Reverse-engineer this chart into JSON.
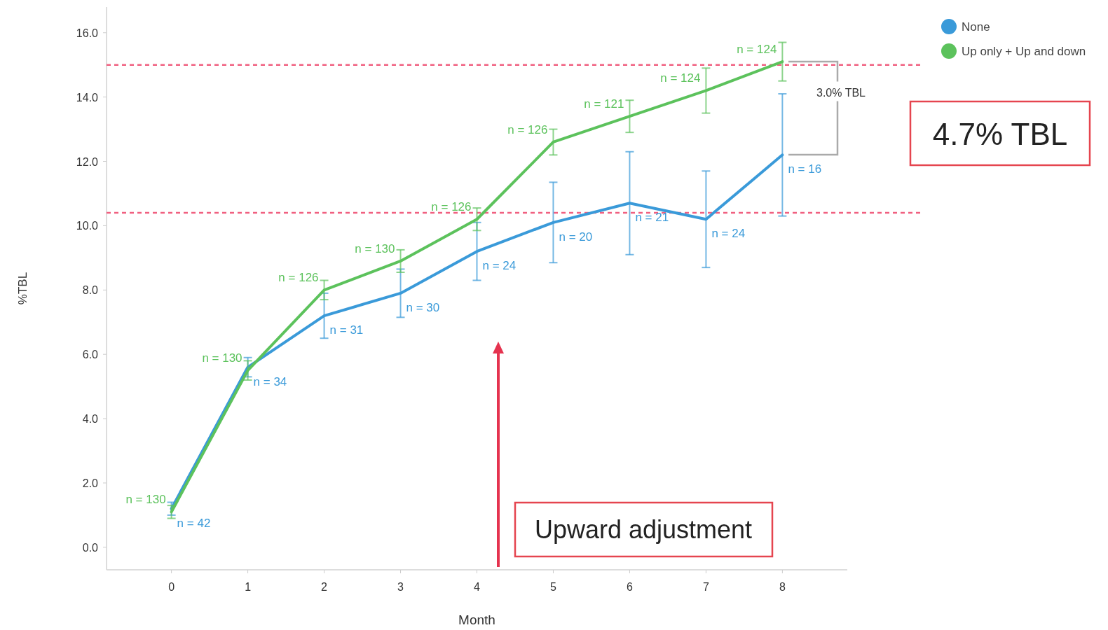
{
  "chart_data": {
    "type": "line",
    "xlabel": "Month",
    "ylabel": "%TBL",
    "x": [
      0,
      1,
      2,
      3,
      4,
      5,
      6,
      7,
      8
    ],
    "series": [
      {
        "name": "None",
        "color": "#3a9ad9",
        "values": [
          1.2,
          5.6,
          7.2,
          7.9,
          9.2,
          10.1,
          10.7,
          10.2,
          12.2
        ],
        "errors": [
          0.2,
          0.3,
          0.7,
          0.75,
          0.9,
          1.25,
          1.6,
          1.5,
          1.9
        ]
      },
      {
        "name": "Up only + Up and down",
        "color": "#5cc25c",
        "values": [
          1.1,
          5.5,
          8.0,
          8.9,
          10.2,
          12.6,
          13.4,
          14.2,
          15.1
        ],
        "errors": [
          0.2,
          0.3,
          0.3,
          0.35,
          0.35,
          0.4,
          0.5,
          0.7,
          0.6
        ]
      }
    ],
    "xlim": [
      -0.85,
      8.85
    ],
    "xticks": [
      0,
      1,
      2,
      3,
      4,
      5,
      6,
      7,
      8
    ],
    "ylim": [
      -0.7,
      16.8
    ],
    "yticks": [
      {
        "value": 0,
        "label": "0.0"
      },
      {
        "value": 2,
        "label": "2.0"
      },
      {
        "value": 4,
        "label": "4.0"
      },
      {
        "value": 6,
        "label": "6.0"
      },
      {
        "value": 8,
        "label": "8.0"
      },
      {
        "value": 10,
        "label": "10.0"
      },
      {
        "value": 12,
        "label": "12.0"
      },
      {
        "value": 14,
        "label": "14.0"
      },
      {
        "value": 16,
        "label": "16.0"
      }
    ],
    "ref_lines": [
      {
        "axis": "y",
        "value": 15.0,
        "color": "#f06080",
        "line_style": "dashed"
      },
      {
        "axis": "y",
        "value": 10.4,
        "color": "#f06080",
        "line_style": "dashed"
      }
    ],
    "annotations": [
      {
        "text": "n = 42",
        "x": 0,
        "y": 1.2
      },
      {
        "text": "n = 34",
        "x": 1,
        "y": 5.6
      },
      {
        "text": "n = 31",
        "x": 2,
        "y": 7.2
      },
      {
        "text": "n = 30",
        "x": 3,
        "y": 7.9
      },
      {
        "text": "n = 24",
        "x": 4,
        "y": 9.2
      },
      {
        "text": "n = 20",
        "x": 5,
        "y": 10.1
      },
      {
        "text": "n = 21",
        "x": 6,
        "y": 10.7
      },
      {
        "text": "n = 24",
        "x": 7,
        "y": 10.2
      },
      {
        "text": "n = 16",
        "x": 8,
        "y": 12.2
      },
      {
        "text": "n = 130",
        "x": 0,
        "y": 1.1
      },
      {
        "text": "n = 130",
        "x": 1,
        "y": 5.5
      },
      {
        "text": "n = 126",
        "x": 2,
        "y": 8.0
      },
      {
        "text": "n = 130",
        "x": 3,
        "y": 8.9
      },
      {
        "text": "n = 126",
        "x": 4,
        "y": 10.2
      },
      {
        "text": "n = 126",
        "x": 5,
        "y": 12.6
      },
      {
        "text": "n = 121",
        "x": 6,
        "y": 13.4
      },
      {
        "text": "n = 124",
        "x": 7,
        "y": 14.2
      },
      {
        "text": "n = 124",
        "x": 8,
        "y": 15.1
      },
      "3.0% TBL",
      "4.7% TBL",
      "Upward adjustment"
    ],
    "legend": "top right",
    "grid": false,
    "marker": "none",
    "line_style": "solid"
  }
}
